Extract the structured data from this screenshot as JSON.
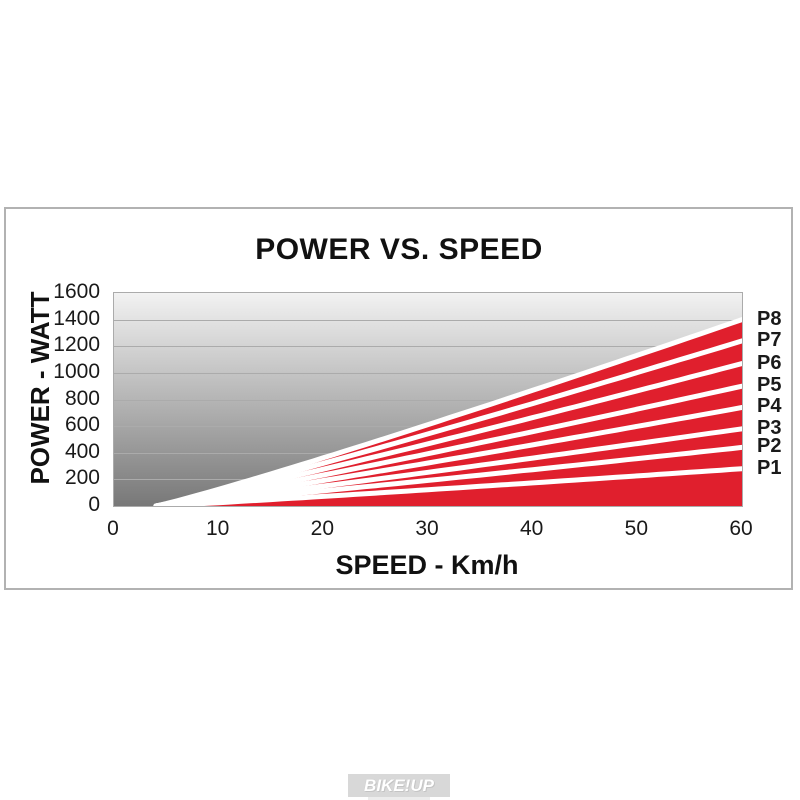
{
  "chart_data": {
    "type": "area",
    "title": "POWER VS. SPEED",
    "xlabel": "SPEED - Km/h",
    "ylabel": "POWER - WATT",
    "xlim": [
      0,
      60
    ],
    "ylim": [
      0,
      1600
    ],
    "x_ticks": [
      0,
      10,
      20,
      30,
      40,
      50,
      60
    ],
    "y_ticks": [
      0,
      200,
      400,
      600,
      800,
      1000,
      1200,
      1400,
      1600
    ],
    "grid": "horizontal gridlines every 200 W",
    "legend_position": "right of plot, each label aligned to its curve end",
    "x": [
      0,
      10,
      20,
      30,
      40,
      50,
      60
    ],
    "series": [
      {
        "name": "P1",
        "max_power_watt_at_60kmh": 280,
        "values": [
          0,
          25,
          72,
          122,
          174,
          226,
          280
        ]
      },
      {
        "name": "P2",
        "max_power_watt_at_60kmh": 440,
        "values": [
          0,
          39,
          114,
          192,
          273,
          356,
          440
        ]
      },
      {
        "name": "P3",
        "max_power_watt_at_60kmh": 580,
        "values": [
          0,
          52,
          150,
          253,
          360,
          469,
          580
        ]
      },
      {
        "name": "P4",
        "max_power_watt_at_60kmh": 740,
        "values": [
          0,
          66,
          191,
          323,
          459,
          598,
          740
        ]
      },
      {
        "name": "P5",
        "max_power_watt_at_60kmh": 900,
        "values": [
          0,
          81,
          233,
          393,
          559,
          728,
          900
        ]
      },
      {
        "name": "P6",
        "max_power_watt_at_60kmh": 1070,
        "values": [
          0,
          96,
          277,
          467,
          664,
          865,
          1070
        ]
      },
      {
        "name": "P7",
        "max_power_watt_at_60kmh": 1240,
        "values": [
          0,
          111,
          321,
          542,
          770,
          1003,
          1240
        ]
      },
      {
        "name": "P8",
        "max_power_watt_at_60kmh": 1400,
        "values": [
          0,
          125,
          362,
          611,
          869,
          1132,
          1400
        ]
      }
    ],
    "model": {
      "takeoff_speed_kmh": 4,
      "exponent": 1.08
    },
    "colors": {
      "area_fill": "#e01f2d",
      "separator": "#ffffff",
      "plot_bg_top": "#f2f2f2",
      "plot_bg_bottom": "#787878",
      "gridline": "#ababab",
      "text": "#1a1a1a",
      "frame_border": "#b2b2b2"
    }
  },
  "watermark": {
    "text": "BIKE!UP"
  }
}
